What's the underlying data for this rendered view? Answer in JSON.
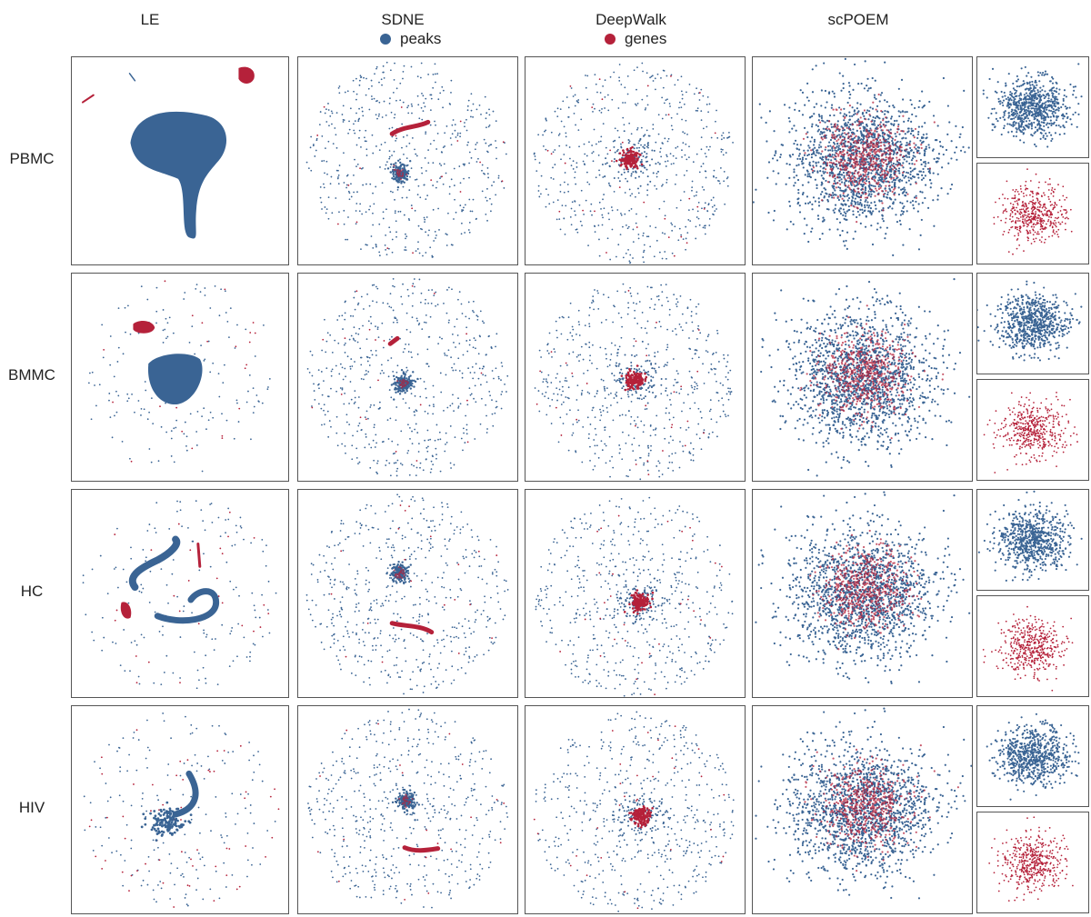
{
  "chart_data": {
    "type": "scatter",
    "columns": [
      "LE",
      "SDNE",
      "DeepWalk",
      "scPOEM"
    ],
    "rows": [
      "PBMC",
      "BMMC",
      "HC",
      "HIV"
    ],
    "legend": [
      {
        "name": "peaks",
        "color": "#3a6494"
      },
      {
        "name": "genes",
        "color": "#b5213a"
      }
    ],
    "side_panels": [
      {
        "row": "PBMC",
        "series": [
          "peaks",
          "genes"
        ]
      },
      {
        "row": "BMMC",
        "series": [
          "peaks",
          "genes"
        ]
      },
      {
        "row": "HC",
        "series": [
          "peaks",
          "genes"
        ]
      },
      {
        "row": "HIV",
        "series": [
          "peaks",
          "genes"
        ]
      }
    ],
    "xlabel": "",
    "ylabel": "",
    "axes_visible": false,
    "grid": false,
    "legend_position": "top-center"
  }
}
